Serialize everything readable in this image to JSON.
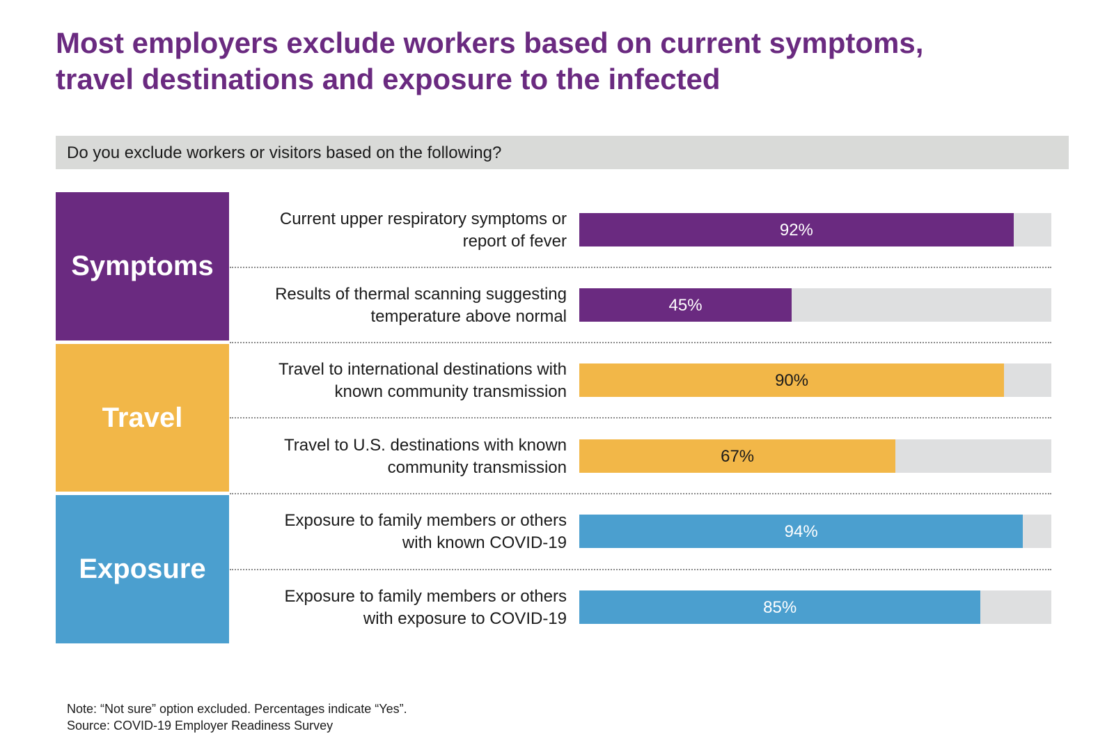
{
  "title_line1": "Most employers exclude workers based on current symptoms,",
  "title_line2": "travel destinations and exposure to the infected",
  "question": "Do you exclude workers or visitors based on the following?",
  "colors": {
    "symptoms": "#6a2a80",
    "travel": "#f2b748",
    "exposure": "#4b9fcf",
    "track": "#dedfe0",
    "title": "#6a2a80"
  },
  "categories": [
    {
      "label": "Symptoms",
      "color": "#6a2a80",
      "text_color": "#ffffff"
    },
    {
      "label": "Travel",
      "color": "#f2b748",
      "text_color": "#ffffff"
    },
    {
      "label": "Exposure",
      "color": "#4b9fcf",
      "text_color": "#ffffff"
    }
  ],
  "chart_data": {
    "type": "bar",
    "orientation": "horizontal",
    "title": "Most employers exclude workers based on current symptoms, travel destinations and exposure to the infected",
    "subtitle": "Do you exclude workers or visitors based on the following?",
    "xlim": [
      0,
      100
    ],
    "unit": "%",
    "grid": false,
    "rows": [
      {
        "category": "Symptoms",
        "line1": "Current upper respiratory symptoms or",
        "line2": "report of fever",
        "value": 92,
        "label": "92%",
        "label_color": "#ffffff"
      },
      {
        "category": "Symptoms",
        "line1": "Results of thermal scanning suggesting",
        "line2": "temperature above normal",
        "value": 45,
        "label": "45%",
        "label_color": "#ffffff"
      },
      {
        "category": "Travel",
        "line1": "Travel to international destinations with",
        "line2": "known community transmission",
        "value": 90,
        "label": "90%",
        "label_color": "#1a1a1a"
      },
      {
        "category": "Travel",
        "line1": "Travel to U.S. destinations with known",
        "line2": "community transmission",
        "value": 67,
        "label": "67%",
        "label_color": "#1a1a1a"
      },
      {
        "category": "Exposure",
        "line1": "Exposure to family members or others",
        "line2": "with known COVID-19",
        "value": 94,
        "label": "94%",
        "label_color": "#ffffff"
      },
      {
        "category": "Exposure",
        "line1": "Exposure to family members or others",
        "line2": "with exposure to COVID-19",
        "value": 85,
        "label": "85%",
        "label_color": "#ffffff"
      }
    ]
  },
  "note": "Note: “Not sure” option excluded. Percentages indicate “Yes”.",
  "source": "Source: COVID-19 Employer Readiness Survey"
}
